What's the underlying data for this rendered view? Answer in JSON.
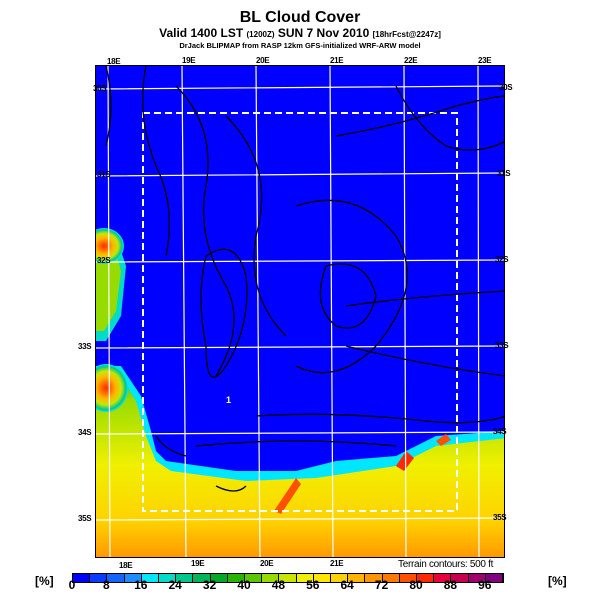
{
  "header": {
    "title": "BL Cloud Cover",
    "subtitle_main": "Valid 1400 LST",
    "subtitle_utc": "(1200Z)",
    "subtitle_date": "SUN 7 Nov 2010",
    "subtitle_fcst": "[18hrFcst@2247z]",
    "source": "DrJack BLIPMAP from RASP 12km GFS-initialized WRF-ARW model"
  },
  "map": {
    "top_lon_labels": [
      "18E",
      "19E",
      "20E",
      "21E",
      "22E",
      "23E"
    ],
    "bottom_lon_labels": [
      "18E",
      "19E",
      "20E",
      "21E"
    ],
    "left_lat_labels": [
      "30S",
      "31S",
      "32S",
      "33S",
      "34S",
      "35S"
    ],
    "right_lat_labels": [
      "30S",
      "31S",
      "32S",
      "33S",
      "34S",
      "35S"
    ],
    "terrain_note": "Terrain contours: 500 ft",
    "point_label": "1"
  },
  "colorbar": {
    "unit_left": "[%]",
    "unit_right": "[%]",
    "ticks": [
      "0",
      "8",
      "16",
      "24",
      "32",
      "40",
      "48",
      "56",
      "64",
      "72",
      "80",
      "88",
      "96"
    ],
    "colors": [
      "#0000ff",
      "#0a3cff",
      "#1464ff",
      "#1e8cff",
      "#00e6ff",
      "#00dcc8",
      "#00c88c",
      "#00b45a",
      "#00aa28",
      "#28b400",
      "#5ac800",
      "#96dc00",
      "#c8e600",
      "#f0f000",
      "#ffe600",
      "#ffd200",
      "#ffb400",
      "#ff9600",
      "#ff7800",
      "#ff5000",
      "#ff2800",
      "#e6003c",
      "#c80050",
      "#a0006e",
      "#800080"
    ]
  }
}
